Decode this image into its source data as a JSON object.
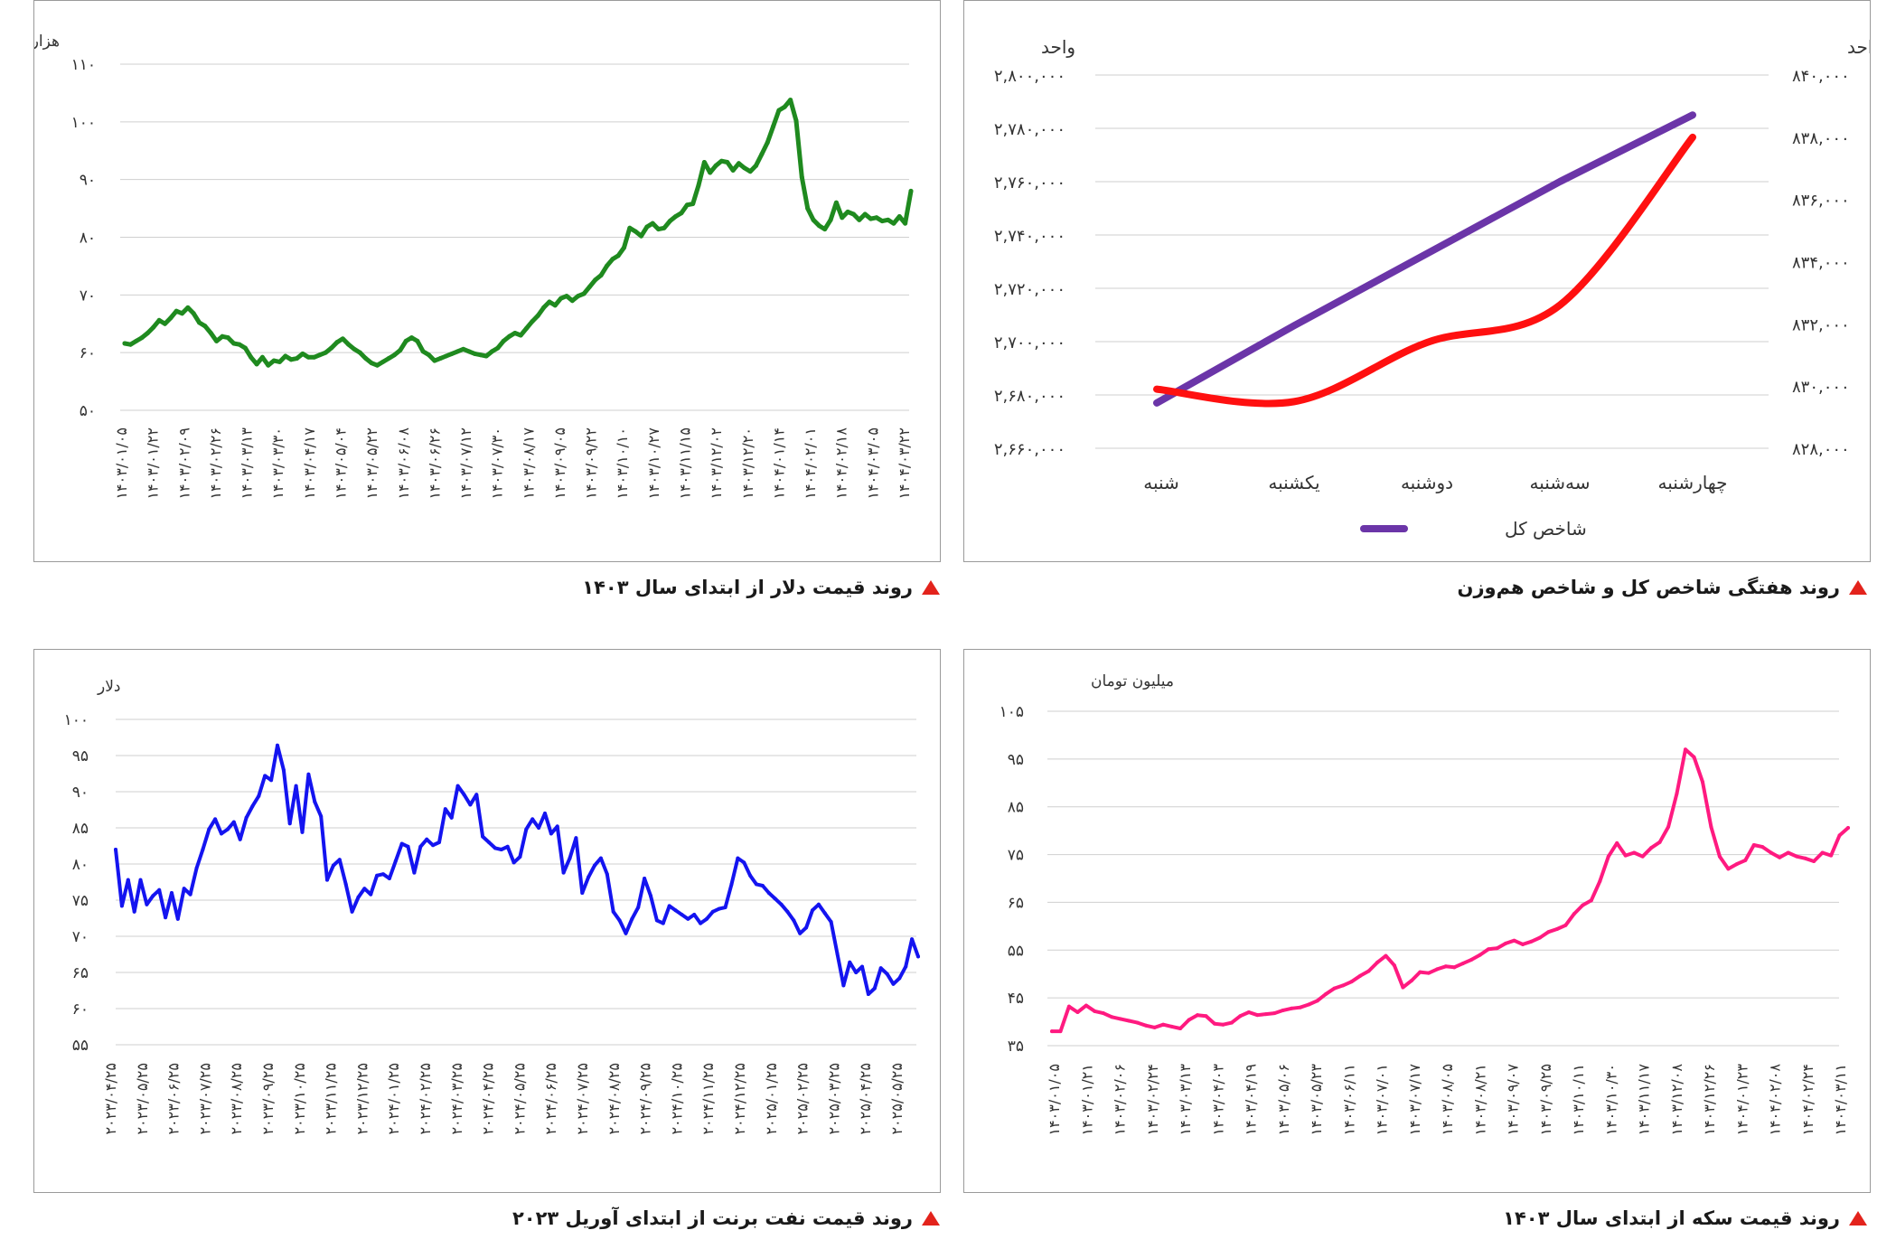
{
  "captions": {
    "index": "روند هفتگی شاخص کل و شاخص هم‌وزن",
    "dollar": "روند قیمت دلار از ابتدای سال ۱۴۰۳",
    "coin": "روند قیمت سکه از ابتدای سال ۱۴۰۳",
    "oil": "روند قیمت نفت برنت از ابتدای آوریل ۲۰۲۳"
  },
  "colors": {
    "caption_marker": "#e3231c",
    "grid": "#cfcfcf",
    "frame": "#9a9a9a"
  },
  "chart_data": [
    {
      "id": "index",
      "type": "line",
      "unit_left": "واحد",
      "unit_right": "واحد",
      "categories": [
        "شنبه",
        "یکشنبه",
        "دوشنبه",
        "سه‌شنبه",
        "چهارشنبه"
      ],
      "ylim_left": [
        2660000,
        2800000
      ],
      "yticks_left": [
        "۲,۶۶۰,۰۰۰",
        "۲,۶۸۰,۰۰۰",
        "۲,۷۰۰,۰۰۰",
        "۲,۷۲۰,۰۰۰",
        "۲,۷۴۰,۰۰۰",
        "۲,۷۶۰,۰۰۰",
        "۲,۷۸۰,۰۰۰",
        "۲,۸۰۰,۰۰۰"
      ],
      "ylim_right": [
        828000,
        840000
      ],
      "yticks_right": [
        "۸۲۸,۰۰۰",
        "۸۳۰,۰۰۰",
        "۸۳۲,۰۰۰",
        "۸۳۴,۰۰۰",
        "۸۳۶,۰۰۰",
        "۸۳۸,۰۰۰",
        "۸۴۰,۰۰۰"
      ],
      "series": [
        {
          "name": "شاخص کل",
          "axis": "left",
          "color": "#6b35a8",
          "values": [
            2677000,
            2706000,
            2733000,
            2760000,
            2785000
          ]
        },
        {
          "axis": "right",
          "color": "#ff1010",
          "smooth": true,
          "values": [
            829900,
            829500,
            831400,
            832600,
            838000
          ]
        }
      ],
      "legend": {
        "label": "شاخص کل",
        "placement": "bottom"
      }
    },
    {
      "id": "dollar",
      "type": "line",
      "ylabel": "هزار تومان",
      "color": "#1f8a1f",
      "ylim": [
        50,
        110
      ],
      "yticks": [
        "۵۰",
        "۶۰",
        "۷۰",
        "۸۰",
        "۹۰",
        "۱۰۰",
        "۱۱۰"
      ],
      "x_labels": [
        "۱۴۰۳/۰۱/۰۵",
        "۱۴۰۳/۰۱/۲۲",
        "۱۴۰۳/۰۲/۰۹",
        "۱۴۰۳/۰۲/۲۶",
        "۱۴۰۳/۰۳/۱۳",
        "۱۴۰۳/۰۳/۳۰",
        "۱۴۰۳/۰۴/۱۷",
        "۱۴۰۳/۰۵/۰۴",
        "۱۴۰۳/۰۵/۲۲",
        "۱۴۰۳/۰۶/۰۸",
        "۱۴۰۳/۰۶/۲۶",
        "۱۴۰۳/۰۷/۱۲",
        "۱۴۰۳/۰۷/۳۰",
        "۱۴۰۳/۰۸/۱۷",
        "۱۴۰۳/۰۹/۰۵",
        "۱۴۰۳/۰۹/۲۲",
        "۱۴۰۳/۱۰/۱۰",
        "۱۴۰۳/۱۰/۲۷",
        "۱۴۰۳/۱۱/۱۵",
        "۱۴۰۳/۱۲/۰۲",
        "۱۴۰۳/۱۲/۲۰",
        "۱۴۰۴/۰۱/۱۴",
        "۱۴۰۴/۰۲/۰۱",
        "۱۴۰۴/۰۲/۱۸",
        "۱۴۰۴/۰۳/۰۵",
        "۱۴۰۴/۰۳/۲۲"
      ],
      "values": [
        61.6,
        61.4,
        62.0,
        62.6,
        63.4,
        64.4,
        65.6,
        65.0,
        66.0,
        67.2,
        66.8,
        67.8,
        66.8,
        65.2,
        64.6,
        63.4,
        62.0,
        62.8,
        62.6,
        61.6,
        61.4,
        60.8,
        59.2,
        58.0,
        59.2,
        57.8,
        58.6,
        58.4,
        59.4,
        58.8,
        59.0,
        59.8,
        59.2,
        59.2,
        59.6,
        60.0,
        60.8,
        61.8,
        62.4,
        61.4,
        60.6,
        60.0,
        59.0,
        58.2,
        57.8,
        58.4,
        59.0,
        59.6,
        60.4,
        62.0,
        62.6,
        62.0,
        60.2,
        59.6,
        58.6,
        59.0,
        59.4,
        59.8,
        60.2,
        60.6,
        60.2,
        59.8,
        59.6,
        59.4,
        60.2,
        60.8,
        62.0,
        62.8,
        63.4,
        63.0,
        64.2,
        65.4,
        66.4,
        67.8,
        68.8,
        68.2,
        69.4,
        69.8,
        69.0,
        69.8,
        70.2,
        71.4,
        72.6,
        73.4,
        75.0,
        76.2,
        76.8,
        78.2,
        81.6,
        81.0,
        80.2,
        81.8,
        82.4,
        81.4,
        81.6,
        82.8,
        83.6,
        84.2,
        85.6,
        85.8,
        89.0,
        93.0,
        91.2,
        92.4,
        93.2,
        93.0,
        91.6,
        92.8,
        92.0,
        91.4,
        92.4,
        94.4,
        96.4,
        99.2,
        102.0,
        102.6,
        103.8,
        100.2,
        90.4,
        85.0,
        83.0,
        82.0,
        81.4,
        83.0,
        86.0,
        83.4,
        84.4,
        84.0,
        83.0,
        84.0,
        83.2,
        83.4,
        82.8,
        83.0,
        82.4,
        83.6,
        82.4,
        88.0
      ]
    },
    {
      "id": "coin",
      "type": "line",
      "ylabel": "میلیون تومان",
      "color": "#ff1a80",
      "ylim": [
        35,
        105
      ],
      "yticks": [
        "۳۵",
        "۴۵",
        "۵۵",
        "۶۵",
        "۷۵",
        "۸۵",
        "۹۵",
        "۱۰۵"
      ],
      "x_labels": [
        "۱۴۰۳/۰۱/۰۵",
        "۱۴۰۳/۰۱/۲۱",
        "۱۴۰۳/۰۲/۰۶",
        "۱۴۰۳/۰۲/۲۴",
        "۱۴۰۳/۰۳/۱۳",
        "۱۴۰۳/۰۴/۰۳",
        "۱۴۰۳/۰۴/۱۹",
        "۱۴۰۳/۰۵/۰۶",
        "۱۴۰۳/۰۵/۲۳",
        "۱۴۰۳/۰۶/۱۱",
        "۱۴۰۳/۰۷/۰۱",
        "۱۴۰۳/۰۷/۱۷",
        "۱۴۰۳/۰۸/۰۵",
        "۱۴۰۳/۰۸/۲۱",
        "۱۴۰۳/۰۹/۰۷",
        "۱۴۰۳/۰۹/۲۵",
        "۱۴۰۳/۱۰/۱۱",
        "۱۴۰۳/۱۰/۳۰",
        "۱۴۰۳/۱۱/۱۷",
        "۱۴۰۳/۱۲/۰۸",
        "۱۴۰۳/۱۲/۲۶",
        "۱۴۰۴/۰۱/۲۳",
        "۱۴۰۴/۰۲/۰۸",
        "۱۴۰۴/۰۲/۲۴",
        "۱۴۰۴/۰۳/۱۱"
      ],
      "values": [
        38.0,
        38.0,
        43.2,
        42.0,
        43.4,
        42.2,
        41.8,
        41.0,
        40.6,
        40.2,
        39.8,
        39.2,
        38.8,
        39.4,
        39.0,
        38.6,
        40.4,
        41.4,
        41.2,
        39.6,
        39.4,
        39.8,
        41.2,
        42.0,
        41.4,
        41.6,
        41.8,
        42.4,
        42.8,
        43.0,
        43.6,
        44.4,
        45.8,
        47.0,
        47.6,
        48.4,
        49.6,
        50.6,
        52.4,
        53.8,
        51.8,
        47.2,
        48.6,
        50.4,
        50.2,
        51.0,
        51.6,
        51.4,
        52.2,
        53.0,
        54.0,
        55.2,
        55.4,
        56.4,
        57.0,
        56.2,
        56.8,
        57.6,
        58.8,
        59.4,
        60.2,
        62.6,
        64.4,
        65.4,
        69.4,
        74.6,
        77.4,
        74.8,
        75.4,
        74.6,
        76.4,
        77.6,
        80.8,
        87.8,
        97.0,
        95.4,
        90.2,
        80.8,
        74.6,
        72.0,
        73.0,
        73.8,
        77.0,
        76.6,
        75.4,
        74.4,
        75.4,
        74.6,
        74.2,
        73.6,
        75.4,
        74.8,
        79.0,
        80.6
      ]
    },
    {
      "id": "oil",
      "type": "line",
      "ylabel": "دلار",
      "color": "#1414f0",
      "ylim": [
        55,
        100
      ],
      "yticks": [
        "۵۵",
        "۶۰",
        "۶۵",
        "۷۰",
        "۷۵",
        "۸۰",
        "۸۵",
        "۹۰",
        "۹۵",
        "۱۰۰"
      ],
      "x_labels": [
        "۲۰۲۳/۰۴/۲۵",
        "۲۰۲۳/۰۵/۲۵",
        "۲۰۲۳/۰۶/۲۵",
        "۲۰۲۳/۰۷/۲۵",
        "۲۰۲۳/۰۸/۲۵",
        "۲۰۲۳/۰۹/۲۵",
        "۲۰۲۳/۱۰/۲۵",
        "۲۰۲۳/۱۱/۲۵",
        "۲۰۲۳/۱۲/۲۵",
        "۲۰۲۴/۰۱/۲۵",
        "۲۰۲۴/۰۲/۲۵",
        "۲۰۲۴/۰۳/۲۵",
        "۲۰۲۴/۰۴/۲۵",
        "۲۰۲۴/۰۵/۲۵",
        "۲۰۲۴/۰۶/۲۵",
        "۲۰۲۴/۰۷/۲۵",
        "۲۰۲۴/۰۸/۲۵",
        "۲۰۲۴/۰۹/۲۵",
        "۲۰۲۴/۱۰/۲۵",
        "۲۰۲۴/۱۱/۲۵",
        "۲۰۲۴/۱۲/۲۵",
        "۲۰۲۵/۰۱/۲۵",
        "۲۰۲۵/۰۲/۲۵",
        "۲۰۲۵/۰۳/۲۵",
        "۲۰۲۵/۰۴/۲۵",
        "۲۰۲۵/۰۵/۲۵"
      ],
      "values": [
        82.0,
        74.2,
        77.8,
        73.4,
        77.8,
        74.4,
        75.6,
        76.4,
        72.6,
        76.0,
        72.4,
        76.6,
        75.8,
        79.4,
        82.0,
        84.8,
        86.2,
        84.2,
        84.8,
        85.8,
        83.4,
        86.4,
        88.0,
        89.4,
        92.2,
        91.6,
        96.4,
        93.0,
        85.6,
        90.8,
        84.4,
        92.4,
        88.6,
        86.6,
        77.8,
        79.8,
        80.6,
        77.2,
        73.4,
        75.4,
        76.6,
        75.8,
        78.4,
        78.6,
        78.0,
        80.4,
        82.8,
        82.4,
        78.8,
        82.4,
        83.4,
        82.6,
        83.0,
        87.6,
        86.4,
        90.8,
        89.6,
        88.2,
        89.6,
        83.8,
        83.0,
        82.2,
        82.0,
        82.4,
        80.2,
        81.0,
        84.8,
        86.2,
        85.0,
        87.0,
        84.2,
        85.2,
        78.8,
        80.8,
        83.6,
        76.0,
        78.2,
        79.8,
        80.8,
        78.6,
        73.4,
        72.2,
        70.4,
        72.4,
        74.0,
        78.0,
        75.6,
        72.2,
        71.8,
        74.2,
        73.6,
        73.0,
        72.4,
        73.0,
        71.8,
        72.4,
        73.4,
        73.8,
        74.0,
        77.2,
        80.8,
        80.2,
        78.4,
        77.2,
        77.0,
        76.0,
        75.2,
        74.4,
        73.4,
        72.2,
        70.4,
        71.2,
        73.6,
        74.4,
        73.2,
        72.0,
        67.6,
        63.2,
        66.4,
        65.0,
        65.8,
        62.0,
        62.8,
        65.6,
        64.8,
        63.4,
        64.2,
        65.8,
        69.6,
        67.2
      ]
    }
  ]
}
